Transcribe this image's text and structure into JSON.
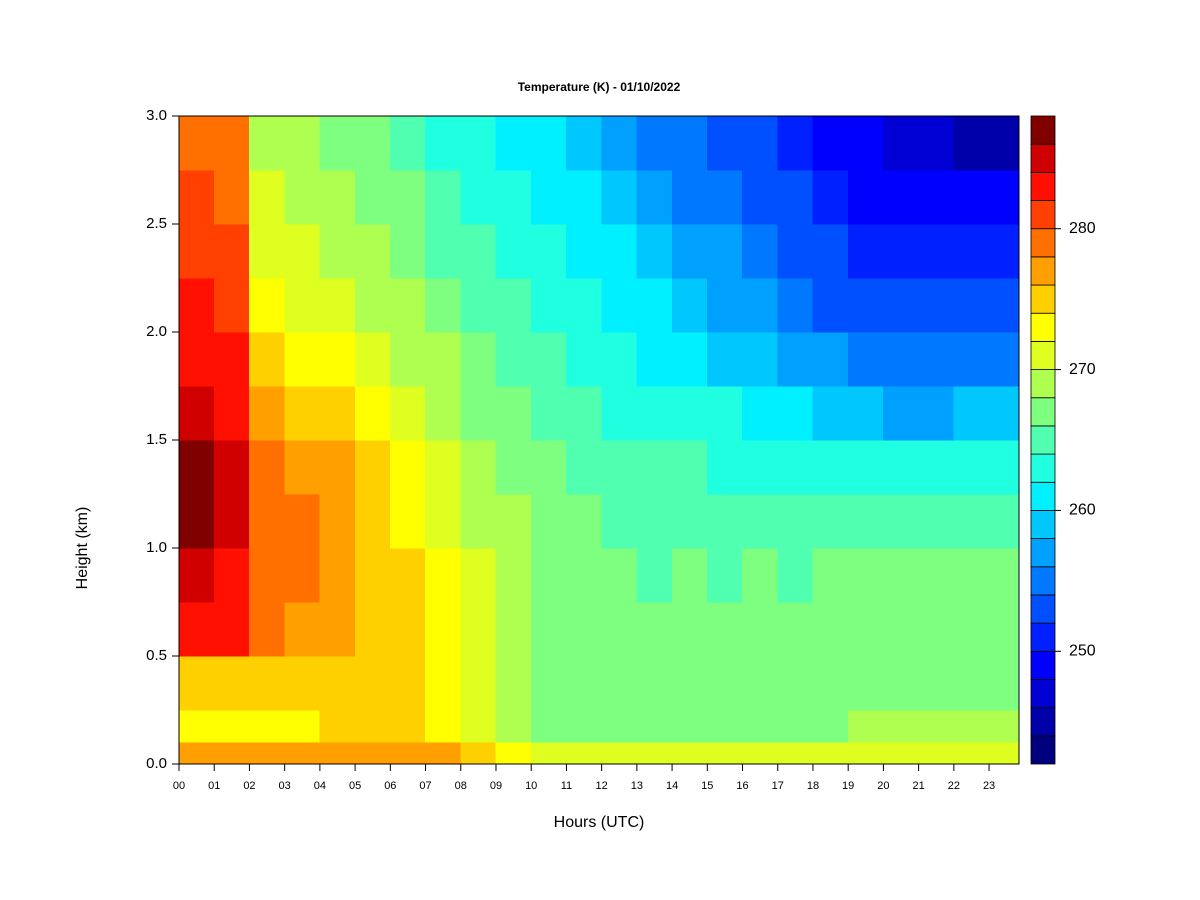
{
  "chart_data": {
    "type": "heatmap",
    "title": "Temperature (K) - 01/10/2022",
    "xlabel": "Hours (UTC)",
    "ylabel": "Height (km)",
    "xlim": [
      0,
      23.85
    ],
    "ylim": [
      0,
      3
    ],
    "xticks": [
      {
        "value": 0,
        "label": "00"
      },
      {
        "value": 1,
        "label": "01"
      },
      {
        "value": 2,
        "label": "02"
      },
      {
        "value": 3,
        "label": "03"
      },
      {
        "value": 4,
        "label": "04"
      },
      {
        "value": 5,
        "label": "05"
      },
      {
        "value": 6,
        "label": "06"
      },
      {
        "value": 7,
        "label": "07"
      },
      {
        "value": 8,
        "label": "08"
      },
      {
        "value": 9,
        "label": "09"
      },
      {
        "value": 10,
        "label": "10"
      },
      {
        "value": 11,
        "label": "11"
      },
      {
        "value": 12,
        "label": "12"
      },
      {
        "value": 13,
        "label": "13"
      },
      {
        "value": 14,
        "label": "14"
      },
      {
        "value": 15,
        "label": "15"
      },
      {
        "value": 16,
        "label": "16"
      },
      {
        "value": 17,
        "label": "17"
      },
      {
        "value": 18,
        "label": "18"
      },
      {
        "value": 19,
        "label": "19"
      },
      {
        "value": 20,
        "label": "20"
      },
      {
        "value": 21,
        "label": "21"
      },
      {
        "value": 22,
        "label": "22"
      },
      {
        "value": 23,
        "label": "23"
      }
    ],
    "yticks": [
      {
        "value": 0,
        "label": "0.0"
      },
      0.5,
      {
        "value": 1,
        "label": "1.0"
      },
      1.5,
      {
        "value": 2,
        "label": "2.0"
      },
      2.5,
      {
        "value": 3,
        "label": "3.0"
      }
    ],
    "x": [
      0,
      1,
      2,
      3,
      4,
      5,
      6,
      7,
      8,
      9,
      10,
      11,
      12,
      13,
      14,
      15,
      16,
      17,
      18,
      19,
      20,
      21,
      22,
      23
    ],
    "y": [
      0,
      0.1,
      0.25,
      0.5,
      0.75,
      1,
      1.25,
      1.5,
      1.75,
      2,
      2.25,
      2.5,
      2.75
    ],
    "z": [
      [
        277,
        277,
        277,
        277,
        277,
        277,
        277,
        276,
        274,
        272,
        271,
        271,
        271,
        271,
        271,
        271,
        271,
        271,
        271,
        271,
        271,
        271,
        271,
        271
      ],
      [
        273,
        273,
        273,
        273,
        274,
        274,
        274,
        273,
        271,
        269,
        267,
        267,
        267,
        267,
        267,
        267,
        267,
        267,
        267,
        268,
        268,
        268,
        268,
        268
      ],
      [
        275,
        275,
        274,
        275,
        275,
        274,
        274,
        272,
        271,
        269,
        267,
        267,
        266,
        266,
        266,
        266,
        266,
        266,
        266,
        267,
        267,
        267,
        267,
        267
      ],
      [
        282,
        282,
        278,
        277,
        276,
        275,
        274,
        272,
        270,
        268,
        267,
        266,
        266,
        266,
        266,
        266,
        266,
        266,
        266,
        266,
        266,
        266,
        266,
        266
      ],
      [
        284,
        283,
        279,
        278,
        277,
        275,
        274,
        272,
        270,
        268,
        267,
        266,
        266,
        265,
        266,
        265,
        266,
        265,
        266,
        266,
        266,
        266,
        266,
        266
      ],
      [
        286,
        285,
        279,
        278,
        277,
        275,
        273,
        271,
        269,
        268,
        267,
        266,
        265,
        265,
        265,
        265,
        265,
        265,
        265,
        265,
        265,
        264,
        265,
        265
      ],
      [
        286,
        284,
        278,
        277,
        276,
        274,
        272,
        270,
        268,
        267,
        266,
        265,
        264,
        264,
        264,
        263,
        263,
        263,
        263,
        262,
        262,
        262,
        262,
        262
      ],
      [
        285,
        283,
        276,
        275,
        274,
        272,
        271,
        269,
        267,
        266,
        265,
        264,
        263,
        263,
        262,
        262,
        261,
        261,
        259,
        258,
        257,
        257,
        258,
        258
      ],
      [
        283,
        282,
        274,
        273,
        272,
        271,
        269,
        268,
        266,
        265,
        264,
        263,
        262,
        261,
        260,
        259,
        258,
        257,
        256,
        255,
        254,
        254,
        254,
        255
      ],
      [
        282,
        281,
        272,
        271,
        270,
        269,
        268,
        267,
        265,
        264,
        263,
        262,
        261,
        260,
        258,
        257,
        256,
        255,
        253,
        252,
        252,
        252,
        252,
        252
      ],
      [
        281,
        280,
        271,
        270,
        269,
        268,
        267,
        265,
        264,
        263,
        262,
        261,
        260,
        258,
        257,
        256,
        255,
        253,
        252,
        251,
        250,
        250,
        250,
        250
      ],
      [
        280,
        279,
        270,
        269,
        268,
        267,
        266,
        264,
        263,
        262,
        261,
        260,
        258,
        257,
        255,
        254,
        253,
        252,
        250,
        249,
        248,
        248,
        248,
        248
      ],
      [
        279,
        278,
        269,
        268,
        267,
        266,
        265,
        263,
        262,
        261,
        260,
        258,
        257,
        255,
        254,
        253,
        252,
        250,
        249,
        248,
        247,
        246,
        245,
        245
      ]
    ],
    "levels": [
      242,
      244,
      246,
      248,
      250,
      252,
      254,
      256,
      258,
      260,
      262,
      264,
      266,
      268,
      270,
      272,
      274,
      276,
      278,
      280,
      282,
      284,
      286,
      288
    ],
    "colors": [
      "#00007f",
      "#0000aa",
      "#0000d4",
      "#0000ff",
      "#0020ff",
      "#0050ff",
      "#0078ff",
      "#00a0ff",
      "#00c8ff",
      "#00f0ff",
      "#20ffdf",
      "#50ffaf",
      "#7fff7f",
      "#afff50",
      "#dfff20",
      "#ffff00",
      "#ffd000",
      "#ffa000",
      "#ff7000",
      "#ff4000",
      "#ff1000",
      "#d00000",
      "#800000"
    ],
    "colorbar_ticks": [
      250,
      260,
      270,
      280
    ]
  }
}
